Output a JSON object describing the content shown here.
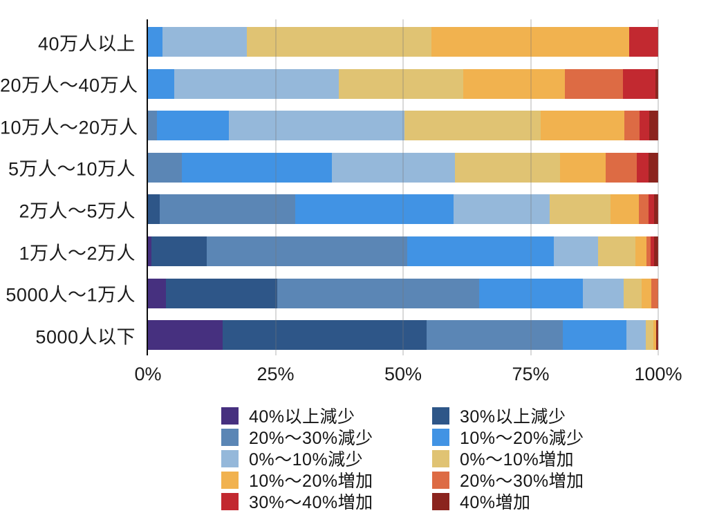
{
  "chart_data": {
    "type": "bar",
    "orientation": "horizontal",
    "stacked": true,
    "unit": "percent",
    "title": "",
    "xlabel": "",
    "ylabel": "",
    "x_axis": {
      "range": [
        0,
        100
      ],
      "ticks": [
        "0%",
        "25%",
        "50%",
        "75%",
        "100%"
      ],
      "tick_values": [
        0,
        25,
        50,
        75,
        100
      ],
      "gridlines_at": [
        25,
        50,
        75,
        100
      ]
    },
    "categories": [
      "40万人以上",
      "20万人〜40万人",
      "10万人〜20万人",
      "5万人〜10万人",
      "2万人〜5万人",
      "1万人〜2万人",
      "5000人〜1万人",
      "5000人以下"
    ],
    "series": [
      {
        "name": "40%以上減少",
        "color": "#46307f",
        "values": [
          0,
          0,
          0,
          0,
          0,
          0.7,
          3.5,
          14.6
        ]
      },
      {
        "name": "30%以上減少",
        "color": "#2e5688",
        "values": [
          0,
          0,
          0,
          0,
          2.3,
          10.8,
          21.9,
          40.0
        ]
      },
      {
        "name": "20%〜30%減少",
        "color": "#5b86b5",
        "values": [
          0,
          0,
          1.8,
          6.6,
          26.6,
          39.3,
          39.5,
          26.7
        ]
      },
      {
        "name": "10%〜20%減少",
        "color": "#4193e4",
        "values": [
          2.8,
          5.2,
          14.1,
          29.5,
          31.0,
          28.7,
          20.4,
          12.5
        ]
      },
      {
        "name": "0%〜10%減少",
        "color": "#95b8da",
        "values": [
          16.6,
          32.2,
          34.4,
          24.1,
          18.8,
          8.7,
          7.9,
          3.7
        ]
      },
      {
        "name": "0%〜10%増加",
        "color": "#e0c373",
        "values": [
          36.2,
          24.4,
          26.7,
          20.6,
          11.9,
          7.3,
          3.5,
          1.6
        ]
      },
      {
        "name": "10%〜20%増加",
        "color": "#f1b24f",
        "values": [
          38.7,
          19.9,
          16.4,
          8.9,
          5.6,
          2.2,
          1.9,
          0.5
        ]
      },
      {
        "name": "20%〜30%増加",
        "color": "#dd6b44",
        "values": [
          0,
          11.4,
          3.0,
          6.1,
          1.9,
          0.8,
          1.4,
          0
        ]
      },
      {
        "name": "30%〜40%増加",
        "color": "#c22930",
        "values": [
          5.7,
          6.4,
          1.9,
          2.3,
          1.1,
          0.7,
          0,
          0
        ]
      },
      {
        "name": "40%増加",
        "color": "#8b241e",
        "values": [
          0,
          0.5,
          1.7,
          1.9,
          0.8,
          0.8,
          0,
          0.4
        ]
      }
    ],
    "legend": {
      "position": "bottom",
      "columns": 2,
      "rows": 5,
      "order": "row-major-pairs"
    }
  },
  "colors": {
    "background": "#ffffff",
    "axis": "#0c0c0c",
    "text": "#1b1b1b"
  }
}
